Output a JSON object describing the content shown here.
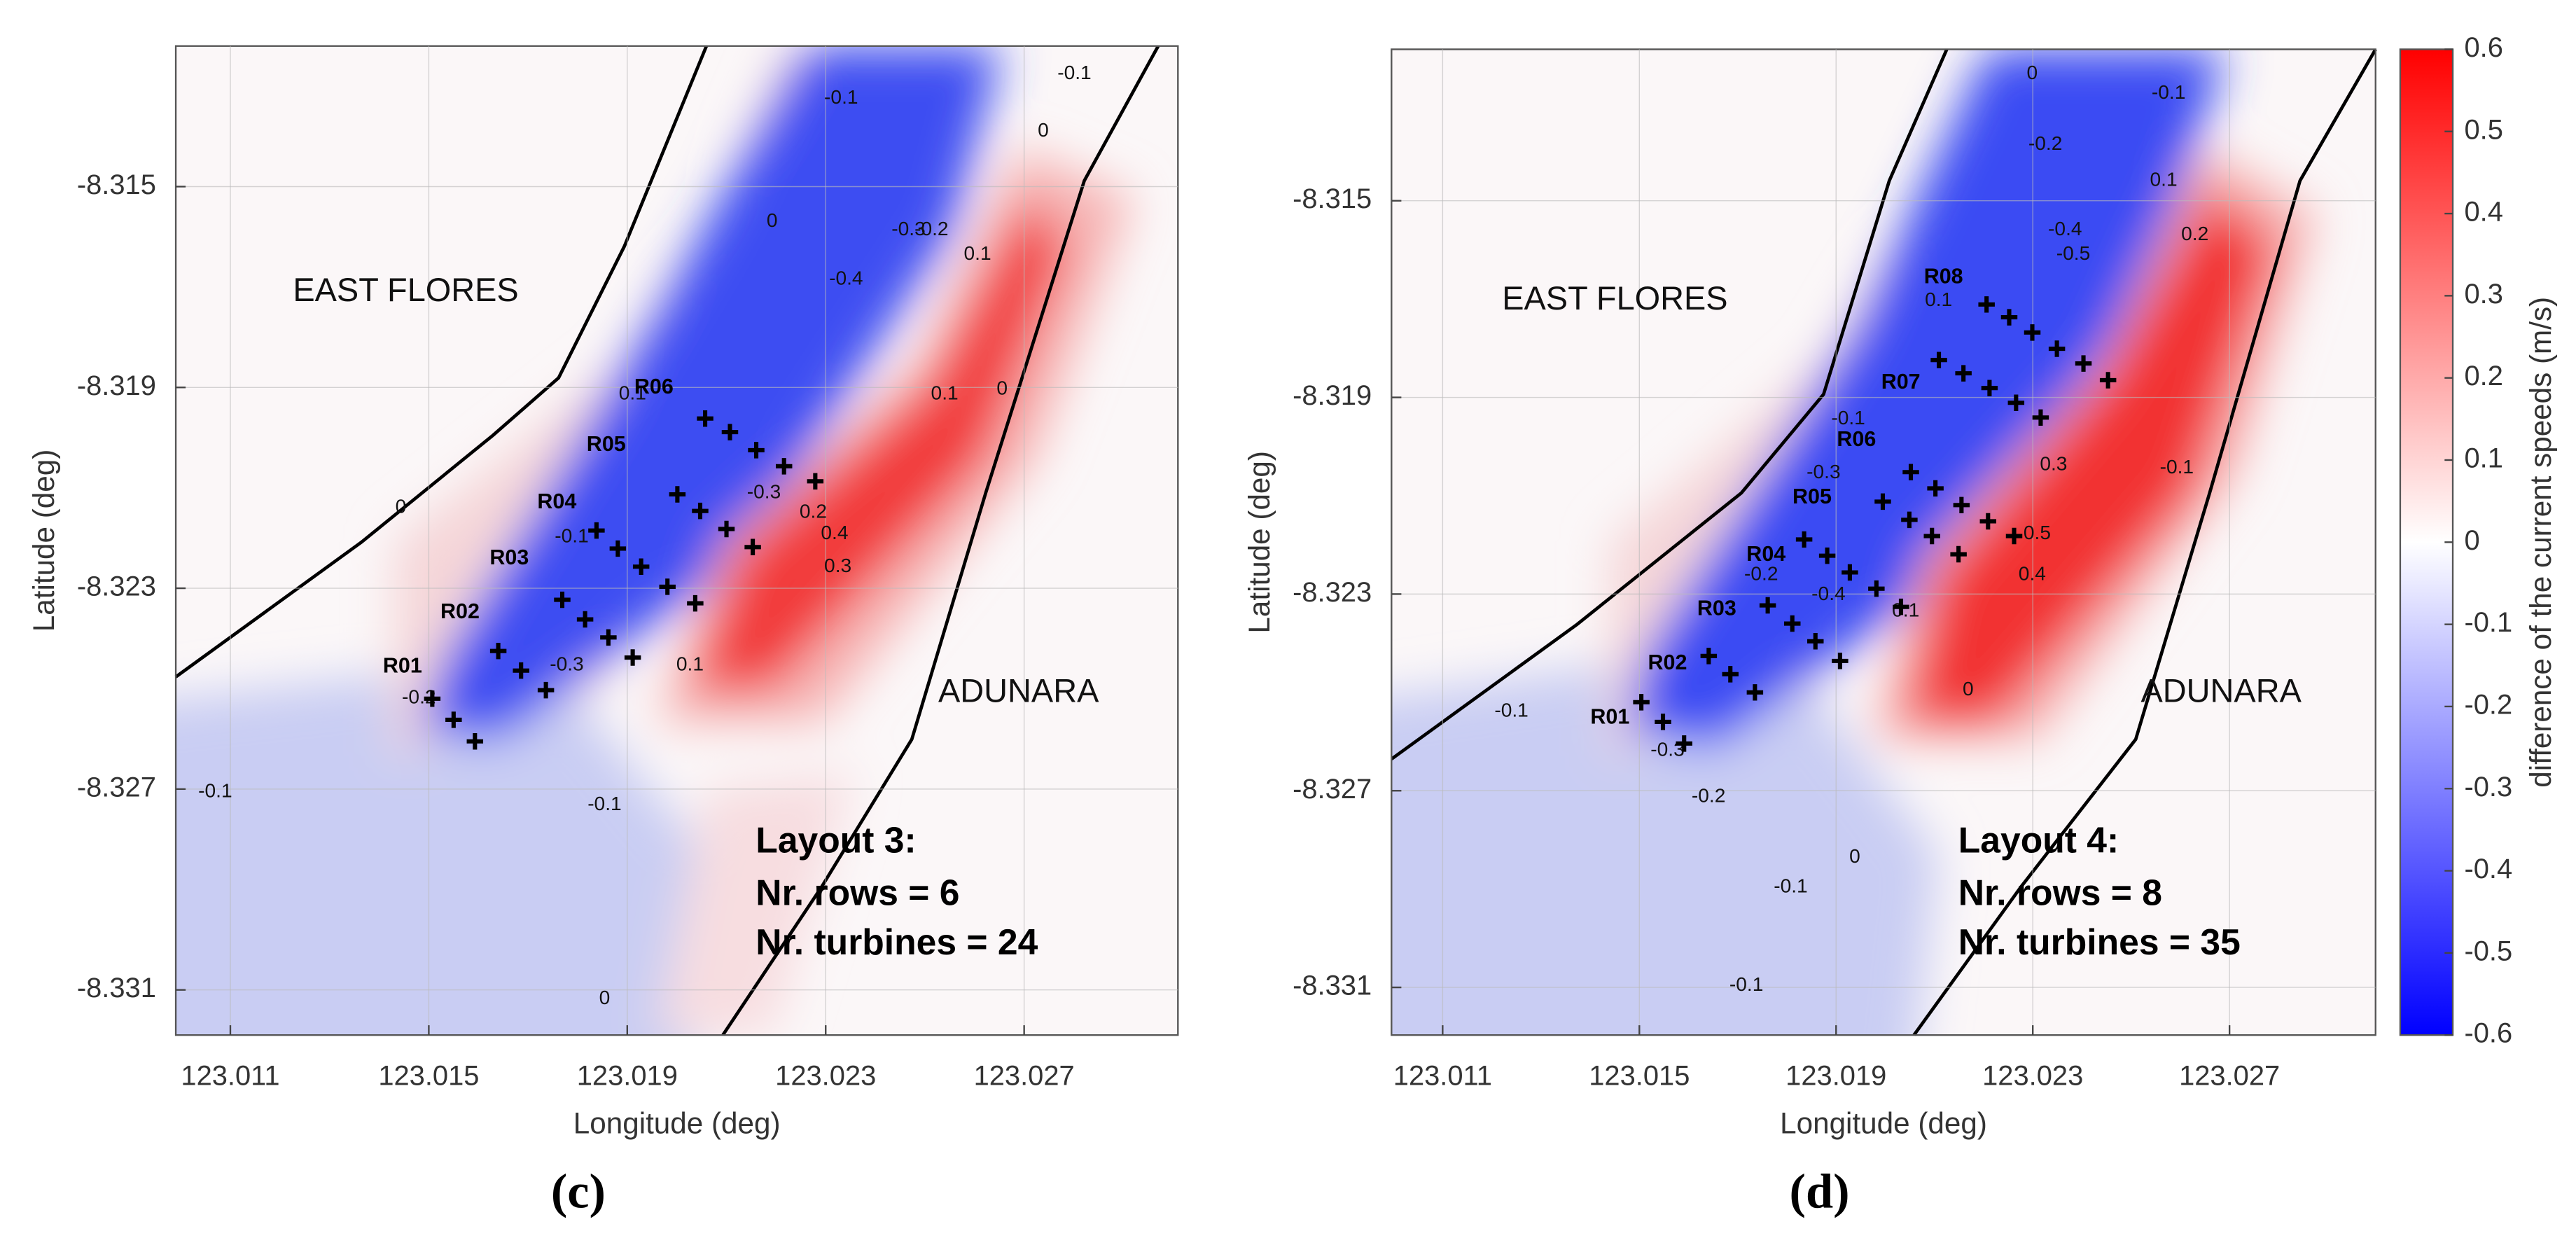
{
  "chart_data": [
    {
      "type": "scatter",
      "panel_label": "(c)",
      "xlabel": "Longitude (deg)",
      "ylabel": "Latitude (deg)",
      "xlim": [
        123.0099,
        123.0301
      ],
      "ylim": [
        -8.3319,
        -8.3122
      ],
      "xticks": [
        123.011,
        123.015,
        123.019,
        123.023,
        123.027
      ],
      "yticks": [
        -8.315,
        -8.319,
        -8.323,
        -8.327,
        -8.331
      ],
      "grid": true,
      "regions": [
        "EAST FLORES",
        "ADUNARA"
      ],
      "annotation": [
        "Layout 3:",
        "Nr. rows = 6",
        "Nr. turbines = 24"
      ],
      "contour_labels": [
        "-0.1",
        "0",
        "0",
        "-0.4",
        "-0.3",
        "-0.2",
        "0.1",
        "0",
        "0.1",
        "0",
        "-0.1",
        "-0.2",
        "-0.3",
        "-0.1",
        "0.2",
        "0.4",
        "0.3",
        "0.1",
        "-0.1",
        "-0.1",
        "0",
        "0.1",
        "-0.3"
      ],
      "series": [
        {
          "name": "R01",
          "color": "#000000",
          "x": [
            123.01507,
            123.0155,
            123.01593
          ],
          "values": [
            -8.3252,
            -8.32562,
            -8.32605
          ]
        },
        {
          "name": "R02",
          "color": "#000000",
          "x": [
            123.0164,
            123.01686,
            123.01736
          ],
          "values": [
            -8.32425,
            -8.32464,
            -8.32503
          ]
        },
        {
          "name": "R03",
          "color": "#000000",
          "x": [
            123.01769,
            123.01815,
            123.01862,
            123.01911
          ],
          "values": [
            -8.32323,
            -8.32362,
            -8.32398,
            -8.32438
          ]
        },
        {
          "name": "R04",
          "color": "#000000",
          "x": [
            123.01838,
            123.01881,
            123.01928,
            123.01981,
            123.02037
          ],
          "values": [
            -8.32185,
            -8.32221,
            -8.32257,
            -8.32297,
            -8.3233
          ]
        },
        {
          "name": "R05",
          "color": "#000000",
          "x": [
            123.02001,
            123.02047,
            123.021,
            123.02153
          ],
          "values": [
            -8.32113,
            -8.32146,
            -8.32182,
            -8.32218
          ]
        },
        {
          "name": "R06",
          "color": "#000000",
          "x": [
            123.02057,
            123.02107,
            123.0216,
            123.02216,
            123.02279
          ],
          "values": [
            -8.31962,
            -8.31989,
            -8.32025,
            -8.32057,
            -8.32087
          ]
        }
      ]
    },
    {
      "type": "scatter",
      "panel_label": "(d)",
      "xlabel": "Longitude (deg)",
      "ylabel": "Latitude (deg)",
      "xlim": [
        123.00996,
        123.02997
      ],
      "ylim": [
        -8.33197,
        -8.31192
      ],
      "xticks": [
        123.011,
        123.015,
        123.019,
        123.023,
        123.027
      ],
      "yticks": [
        -8.315,
        -8.319,
        -8.323,
        -8.327,
        -8.331
      ],
      "grid": true,
      "regions": [
        "EAST FLORES",
        "ADUNARA"
      ],
      "annotation": [
        "Layout 4:",
        "Nr. rows = 8",
        "Nr. turbines = 35"
      ],
      "contour_labels": [
        "0",
        "-0.2",
        "-0.1",
        "0.1",
        "0.2",
        "-0.4",
        "-0.5",
        "0.1",
        "-0.1",
        "-0.3",
        "-0.2",
        "-0.4",
        "0.3",
        "0.5",
        "0.4",
        "-0.1",
        "0",
        "0.1",
        "-0.1",
        "-0.3",
        "-0.2",
        "-0.1",
        "0",
        "-0.1"
      ],
      "series": [
        {
          "name": "R01",
          "color": "#000000",
          "x": [
            123.01504,
            123.01548,
            123.01591
          ],
          "values": [
            -8.3252,
            -8.3256,
            -8.32604
          ]
        },
        {
          "name": "R02",
          "color": "#000000",
          "x": [
            123.01641,
            123.01685,
            123.01735
          ],
          "values": [
            -8.32426,
            -8.32463,
            -8.325
          ]
        },
        {
          "name": "R03",
          "color": "#000000",
          "x": [
            123.01761,
            123.01811,
            123.01858,
            123.01908
          ],
          "values": [
            -8.32323,
            -8.3236,
            -8.32396,
            -8.32436
          ]
        },
        {
          "name": "R04",
          "color": "#000000",
          "x": [
            123.01835,
            123.01882,
            123.01928,
            123.01982,
            123.02032
          ],
          "values": [
            -8.32189,
            -8.32222,
            -8.32256,
            -8.32289,
            -8.32326
          ]
        },
        {
          "name": "R05",
          "color": "#000000",
          "x": [
            123.01995,
            123.02049,
            123.02095,
            123.02149
          ],
          "values": [
            -8.32112,
            -8.32149,
            -8.32182,
            -8.32219
          ]
        },
        {
          "name": "R06",
          "color": "#000000",
          "x": [
            123.02052,
            123.02102,
            123.02155,
            123.02209,
            123.02262
          ],
          "values": [
            -8.32052,
            -8.32085,
            -8.32119,
            -8.32152,
            -8.32182
          ]
        },
        {
          "name": "R07",
          "color": "#000000",
          "x": [
            123.02109,
            123.02159,
            123.02212,
            123.02266,
            123.02316
          ],
          "values": [
            -8.31824,
            -8.31851,
            -8.31881,
            -8.31911,
            -8.31941
          ]
        },
        {
          "name": "R08",
          "color": "#000000",
          "x": [
            123.02206,
            123.02252,
            123.02299,
            123.02349,
            123.02403,
            123.02453
          ],
          "values": [
            -8.31711,
            -8.31737,
            -8.31768,
            -8.31801,
            -8.31831,
            -8.31865
          ]
        }
      ],
      "colorbar": {
        "label": "difference of the current speeds (m/s)",
        "lim": [
          -0.6,
          0.6
        ],
        "ticks": [
          0.6,
          0.5,
          0.4,
          0.3,
          0.2,
          0.1,
          0,
          -0.1,
          -0.2,
          -0.3,
          -0.4,
          -0.5,
          -0.6
        ],
        "colors": [
          "#0000ff",
          "#ffffff",
          "#ff0000"
        ]
      }
    }
  ]
}
